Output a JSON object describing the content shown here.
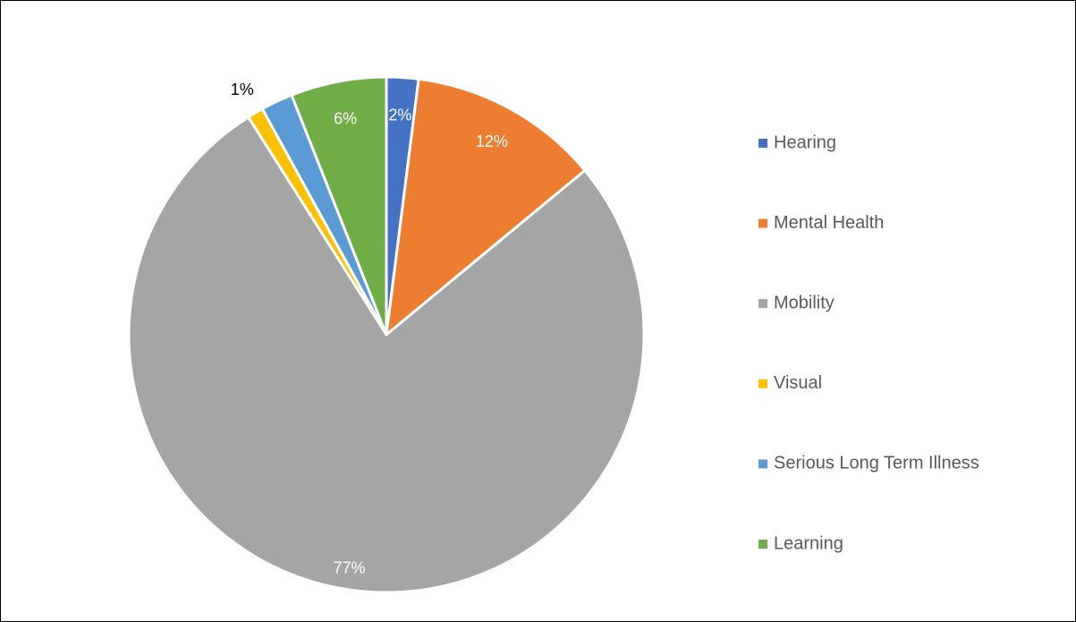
{
  "chart_data": {
    "type": "pie",
    "categories": [
      "Hearing",
      "Mental Health",
      "Mobility",
      "Visual",
      "Serious Long Term Illness",
      "Learning"
    ],
    "values": [
      2,
      12,
      77,
      1,
      2,
      6
    ],
    "value_labels": [
      "2%",
      "12%",
      "77%",
      "1%",
      null,
      "6%"
    ],
    "colors": [
      "#4472c4",
      "#ed7d31",
      "#a5a5a5",
      "#ffc000",
      "#5b9bd5",
      "#70ad47"
    ],
    "legend": "right"
  }
}
